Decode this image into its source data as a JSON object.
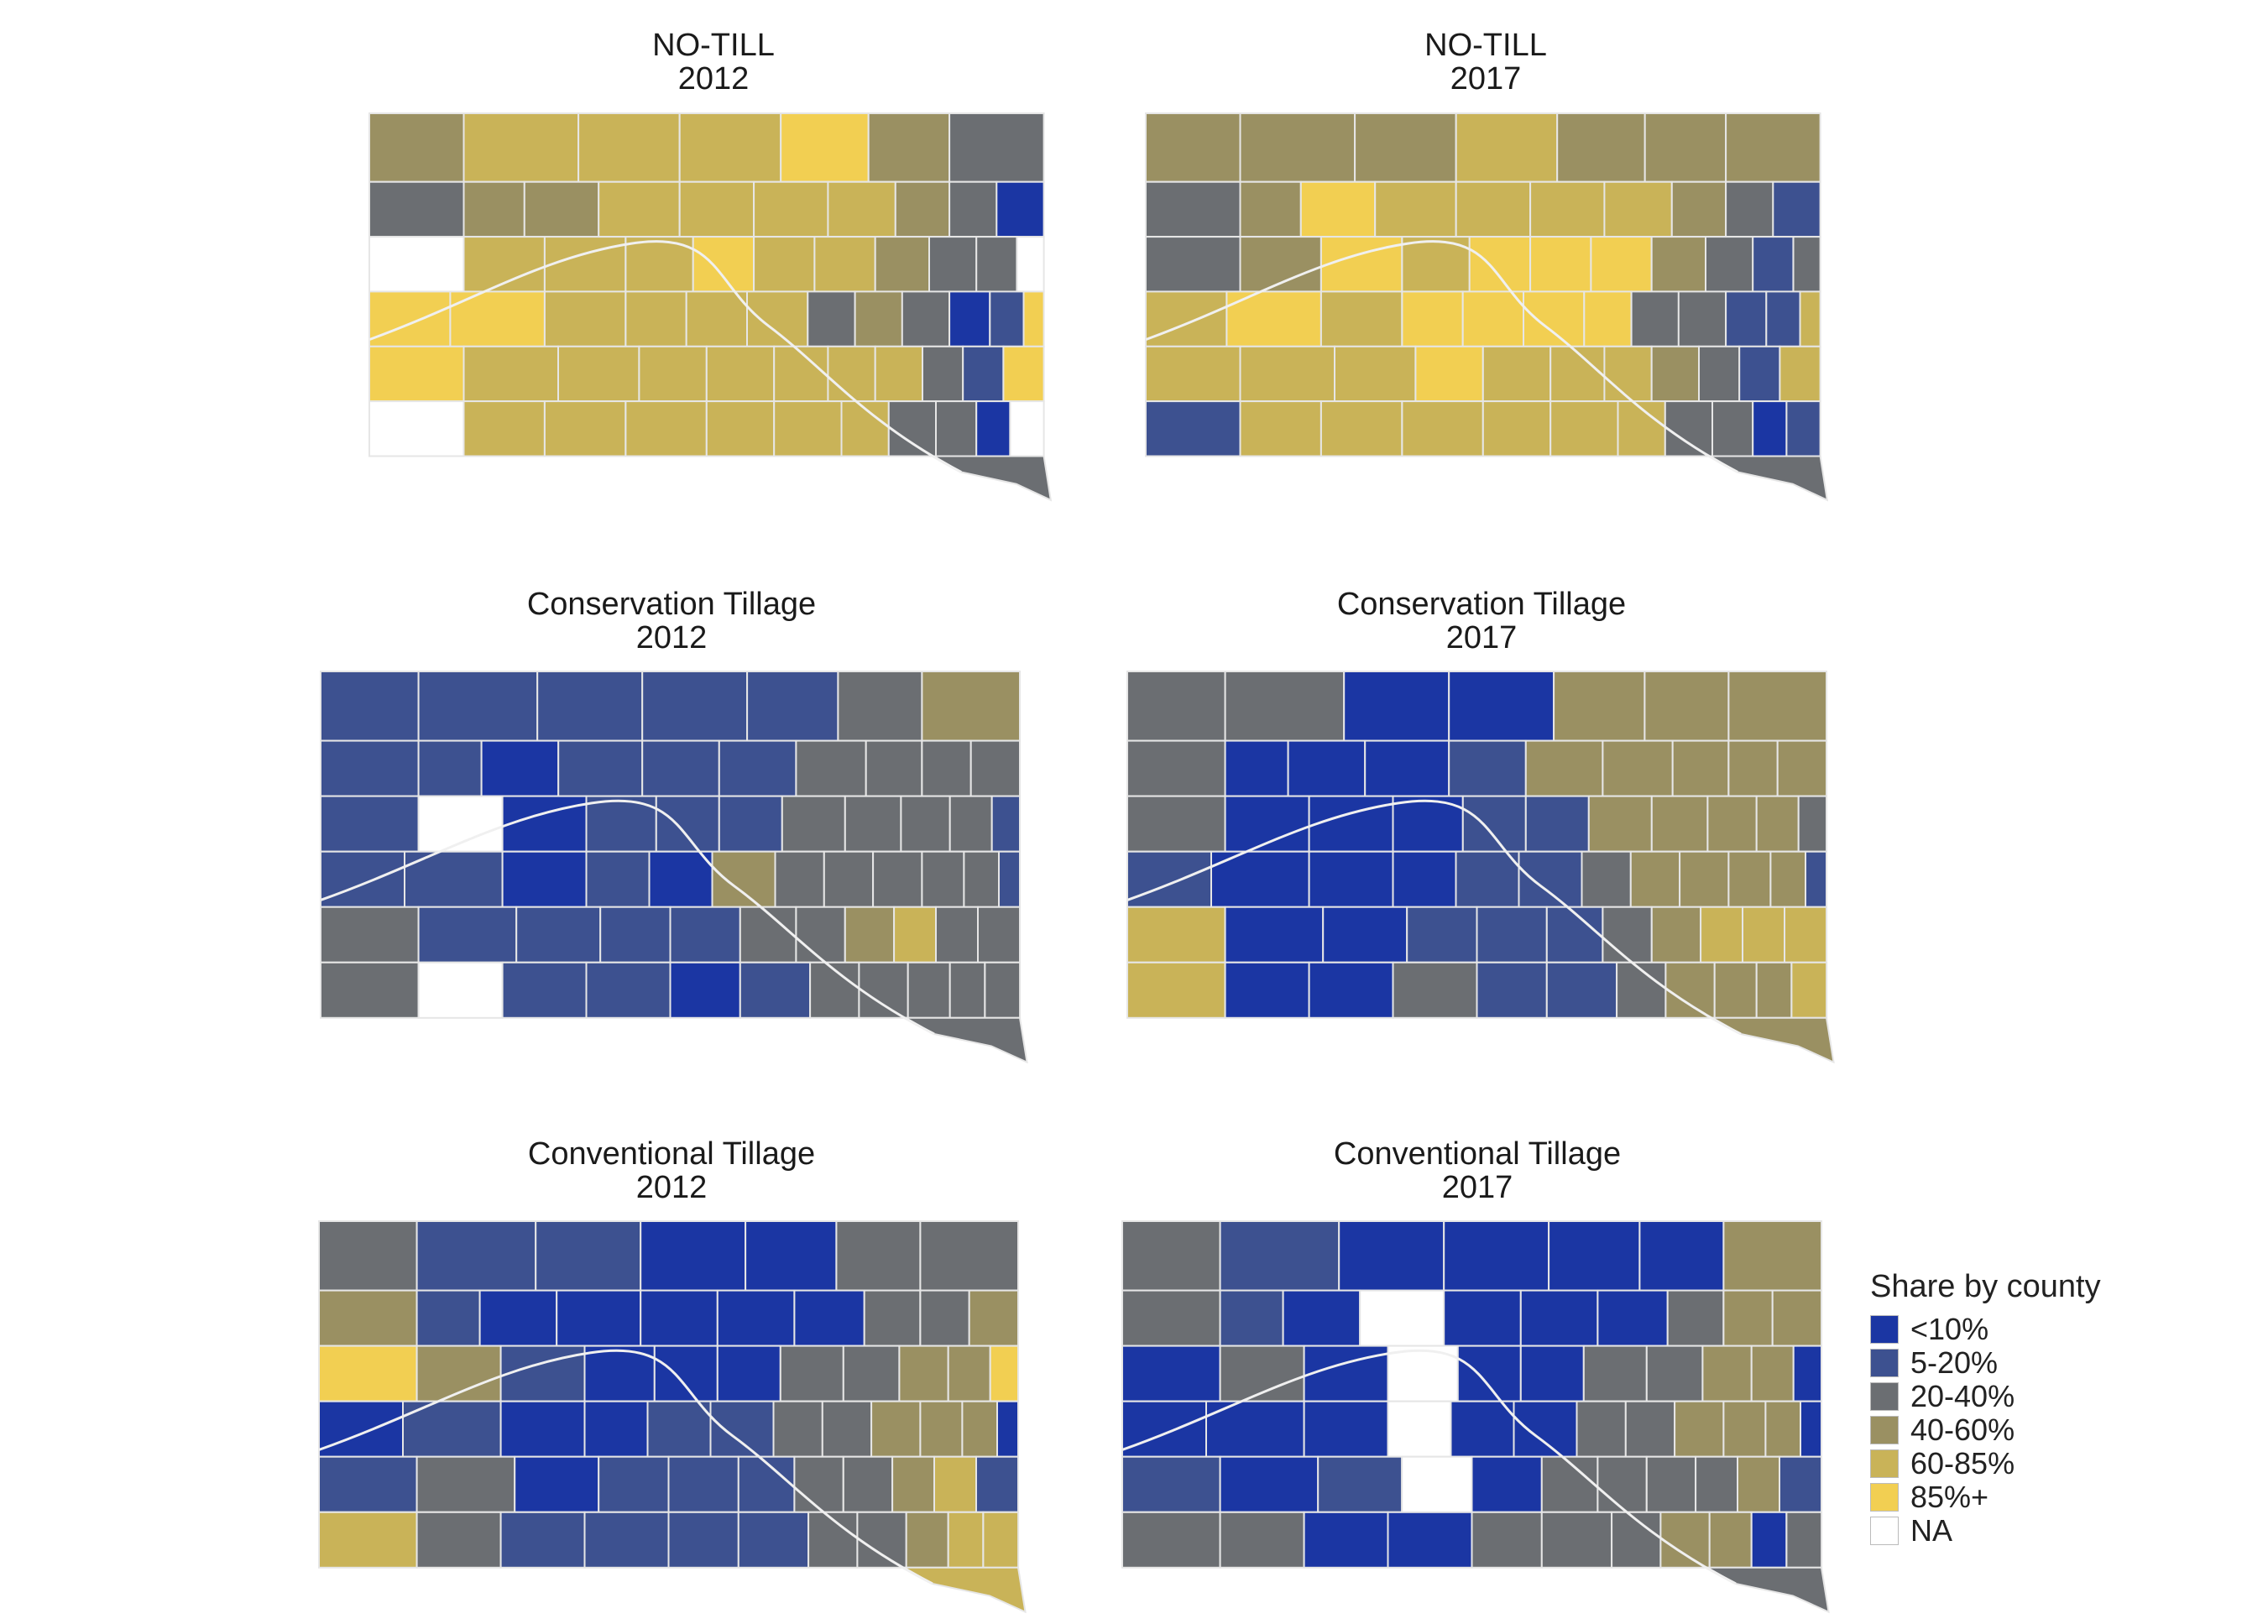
{
  "legend": {
    "title": "Share by county",
    "items": [
      {
        "label": "<10%",
        "color": "#1b36a3"
      },
      {
        "label": "5-20%",
        "color": "#3d5190"
      },
      {
        "label": "20-40%",
        "color": "#6b6e72"
      },
      {
        "label": "40-60%",
        "color": "#9a9062"
      },
      {
        "label": "60-85%",
        "color": "#c9b358"
      },
      {
        "label": "85%+",
        "color": "#f2cf52"
      },
      {
        "label": "NA",
        "color": "#ffffff"
      }
    ]
  },
  "panels": [
    {
      "title": "NO-TILL",
      "year": "2012"
    },
    {
      "title": "NO-TILL",
      "year": "2017"
    },
    {
      "title": "Conservation Tillage",
      "year": "2012"
    },
    {
      "title": "Conservation Tillage",
      "year": "2017"
    },
    {
      "title": "Conventional Tillage",
      "year": "2012"
    },
    {
      "title": "Conventional Tillage",
      "year": "2017"
    }
  ]
}
